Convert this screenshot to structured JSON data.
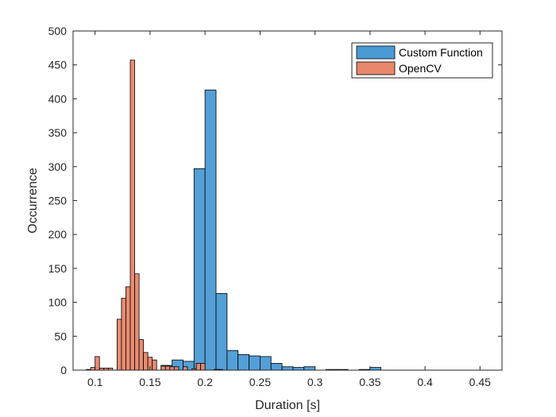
{
  "chart_data": {
    "type": "bar",
    "subtype": "histogram-overlay",
    "title": "",
    "xlabel": "Duration [s]",
    "ylabel": "Occurrence",
    "xlim": [
      0.08,
      0.47
    ],
    "ylim": [
      0,
      500
    ],
    "xticks": [
      0.1,
      0.15,
      0.2,
      0.25,
      0.3,
      0.35,
      0.4,
      0.45
    ],
    "xtick_labels": [
      "0.1",
      "0.15",
      "0.2",
      "0.25",
      "0.3",
      "0.35",
      "0.4",
      "0.45"
    ],
    "yticks": [
      0,
      50,
      100,
      150,
      200,
      250,
      300,
      350,
      400,
      450,
      500
    ],
    "ytick_labels": [
      "0",
      "50",
      "100",
      "150",
      "200",
      "250",
      "300",
      "350",
      "400",
      "450",
      "500"
    ],
    "grid": false,
    "legend_position": "top-right",
    "series": [
      {
        "name": "Custom Function",
        "color": "#4a9ad4",
        "bin_width": 0.01,
        "bins": [
          {
            "x0": 0.16,
            "x1": 0.17,
            "value": 7
          },
          {
            "x0": 0.17,
            "x1": 0.18,
            "value": 15
          },
          {
            "x0": 0.18,
            "x1": 0.19,
            "value": 13
          },
          {
            "x0": 0.19,
            "x1": 0.2,
            "value": 297
          },
          {
            "x0": 0.2,
            "x1": 0.21,
            "value": 413
          },
          {
            "x0": 0.21,
            "x1": 0.22,
            "value": 113
          },
          {
            "x0": 0.22,
            "x1": 0.23,
            "value": 29
          },
          {
            "x0": 0.23,
            "x1": 0.24,
            "value": 23
          },
          {
            "x0": 0.24,
            "x1": 0.25,
            "value": 21
          },
          {
            "x0": 0.25,
            "x1": 0.26,
            "value": 20
          },
          {
            "x0": 0.26,
            "x1": 0.27,
            "value": 10
          },
          {
            "x0": 0.27,
            "x1": 0.28,
            "value": 5
          },
          {
            "x0": 0.28,
            "x1": 0.29,
            "value": 4
          },
          {
            "x0": 0.29,
            "x1": 0.3,
            "value": 5
          },
          {
            "x0": 0.3,
            "x1": 0.31,
            "value": 0
          },
          {
            "x0": 0.31,
            "x1": 0.32,
            "value": 1
          },
          {
            "x0": 0.32,
            "x1": 0.33,
            "value": 1
          },
          {
            "x0": 0.33,
            "x1": 0.34,
            "value": 0
          },
          {
            "x0": 0.34,
            "x1": 0.35,
            "value": 1
          },
          {
            "x0": 0.35,
            "x1": 0.36,
            "value": 4
          }
        ]
      },
      {
        "name": "OpenCV",
        "color": "#e8866a",
        "bin_width": 0.004,
        "bins": [
          {
            "x0": 0.092,
            "x1": 0.096,
            "value": 1
          },
          {
            "x0": 0.096,
            "x1": 0.1,
            "value": 4
          },
          {
            "x0": 0.1,
            "x1": 0.104,
            "value": 20
          },
          {
            "x0": 0.104,
            "x1": 0.108,
            "value": 3
          },
          {
            "x0": 0.108,
            "x1": 0.112,
            "value": 3
          },
          {
            "x0": 0.112,
            "x1": 0.116,
            "value": 3
          },
          {
            "x0": 0.12,
            "x1": 0.124,
            "value": 75
          },
          {
            "x0": 0.124,
            "x1": 0.128,
            "value": 106
          },
          {
            "x0": 0.128,
            "x1": 0.132,
            "value": 123
          },
          {
            "x0": 0.132,
            "x1": 0.136,
            "value": 457
          },
          {
            "x0": 0.136,
            "x1": 0.14,
            "value": 142
          },
          {
            "x0": 0.14,
            "x1": 0.144,
            "value": 45
          },
          {
            "x0": 0.144,
            "x1": 0.148,
            "value": 26
          },
          {
            "x0": 0.148,
            "x1": 0.152,
            "value": 19
          },
          {
            "x0": 0.152,
            "x1": 0.156,
            "value": 15
          },
          {
            "x0": 0.16,
            "x1": 0.164,
            "value": 6
          },
          {
            "x0": 0.164,
            "x1": 0.168,
            "value": 6
          },
          {
            "x0": 0.168,
            "x1": 0.172,
            "value": 5
          },
          {
            "x0": 0.172,
            "x1": 0.176,
            "value": 5
          },
          {
            "x0": 0.18,
            "x1": 0.184,
            "value": 5
          },
          {
            "x0": 0.188,
            "x1": 0.192,
            "value": 2
          },
          {
            "x0": 0.192,
            "x1": 0.196,
            "value": 10
          },
          {
            "x0": 0.196,
            "x1": 0.2,
            "value": 10
          },
          {
            "x0": 0.208,
            "x1": 0.212,
            "value": 1
          },
          {
            "x0": 0.212,
            "x1": 0.216,
            "value": 1
          }
        ]
      }
    ]
  }
}
